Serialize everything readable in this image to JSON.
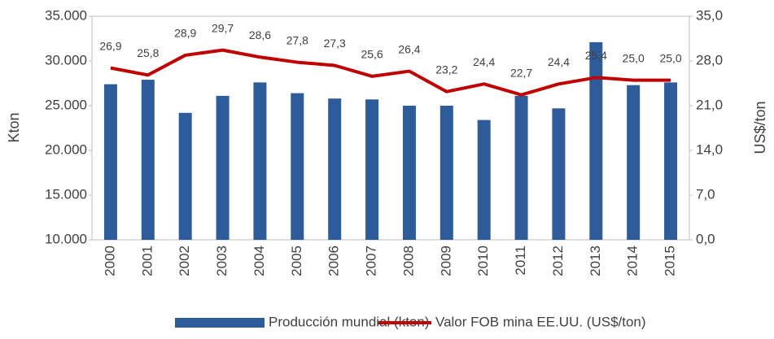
{
  "chart_data": {
    "type": "bar_line",
    "categories": [
      "2000",
      "2001",
      "2002",
      "2003",
      "2004",
      "2005",
      "2006",
      "2007",
      "2008",
      "2009",
      "2010",
      "2011",
      "2012",
      "2013",
      "2014",
      "2015"
    ],
    "ylabel": "Kton",
    "y2label": "US$/ton",
    "ylim": [
      10000,
      35000
    ],
    "yticks": [
      {
        "value": 10000,
        "label": "10.000"
      },
      {
        "value": 15000,
        "label": "15.000"
      },
      {
        "value": 20000,
        "label": "20.000"
      },
      {
        "value": 25000,
        "label": "25.000"
      },
      {
        "value": 30000,
        "label": "30.000"
      },
      {
        "value": 35000,
        "label": "35.000"
      }
    ],
    "y2lim": [
      0,
      35
    ],
    "y2ticks": [
      {
        "value": 0,
        "label": "0,0"
      },
      {
        "value": 7,
        "label": "7,0"
      },
      {
        "value": 14,
        "label": "14,0"
      },
      {
        "value": 21,
        "label": "21,0"
      },
      {
        "value": 28,
        "label": "28,0"
      },
      {
        "value": 35,
        "label": "35,0"
      }
    ],
    "legend": "bottom",
    "series": [
      {
        "name": "Producción mundial (kton)",
        "type": "bar",
        "color": "#2e5c9a",
        "values": [
          27400,
          27900,
          24200,
          26100,
          27600,
          26400,
          25800,
          25700,
          25000,
          25000,
          23400,
          26100,
          24700,
          32100,
          27300,
          27600
        ]
      },
      {
        "name": "Valor FOB mina EE.UU. (US$/ton)",
        "type": "line",
        "axis": "y2",
        "color": "#c00000",
        "values": [
          26.9,
          25.8,
          28.9,
          29.7,
          28.6,
          27.8,
          27.3,
          25.6,
          26.4,
          23.2,
          24.4,
          22.7,
          24.4,
          25.4,
          25.0,
          25.0
        ],
        "value_labels": [
          "26,9",
          "25,8",
          "28,9",
          "29,7",
          "28,6",
          "27,8",
          "27,3",
          "25,6",
          "26,4",
          "23,2",
          "24,4",
          "22,7",
          "24,4",
          "25,4",
          "25,0",
          "25,0"
        ]
      }
    ]
  }
}
